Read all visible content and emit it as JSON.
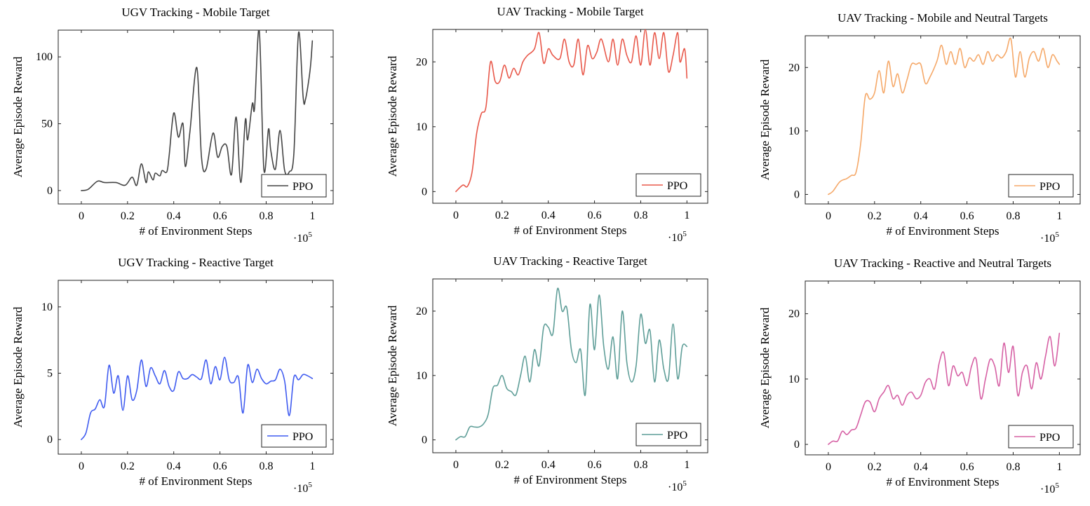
{
  "chart_data": [
    {
      "type": "line",
      "title": "UGV Tracking - Mobile Target",
      "xlabel": "# of Environment Steps",
      "ylabel": "Average Episode Reward",
      "x_multiplier": "·10",
      "x_multiplier_exp": "5",
      "xlim": [
        -0.1,
        1.09
      ],
      "ylim": [
        -10,
        120
      ],
      "xticks": [
        0,
        0.2,
        0.4,
        0.6,
        0.8,
        1
      ],
      "yticks": [
        0,
        50,
        100
      ],
      "legend": "bottom-right",
      "series": [
        {
          "name": "PPO",
          "color": "#444444",
          "x": [
            0,
            0.03,
            0.07,
            0.1,
            0.15,
            0.19,
            0.22,
            0.24,
            0.26,
            0.28,
            0.29,
            0.31,
            0.32,
            0.34,
            0.35,
            0.37,
            0.38,
            0.4,
            0.42,
            0.44,
            0.45,
            0.47,
            0.5,
            0.52,
            0.54,
            0.57,
            0.59,
            0.61,
            0.63,
            0.65,
            0.67,
            0.69,
            0.71,
            0.72,
            0.74,
            0.75,
            0.77,
            0.79,
            0.81,
            0.82,
            0.84,
            0.86,
            0.88,
            0.9,
            0.92,
            0.94,
            0.96,
            0.97,
            0.99,
            1
          ],
          "y": [
            0,
            1,
            7,
            6,
            6,
            4,
            10,
            4,
            20,
            6,
            14,
            8,
            13,
            11,
            15,
            14,
            26,
            58,
            40,
            50,
            18,
            44,
            92,
            25,
            16,
            43,
            25,
            33,
            33,
            12,
            55,
            6,
            53,
            38,
            65,
            62,
            120,
            16,
            46,
            30,
            16,
            45,
            15,
            14,
            28,
            118,
            70,
            68,
            90,
            112
          ]
        }
      ]
    },
    {
      "type": "line",
      "title": "UAV Tracking - Mobile Target",
      "xlabel": "# of Environment Steps",
      "ylabel": "Average Episode Reward",
      "x_multiplier": "·10",
      "x_multiplier_exp": "5",
      "xlim": [
        -0.1,
        1.09
      ],
      "ylim": [
        -1.8,
        25
      ],
      "xticks": [
        0,
        0.2,
        0.4,
        0.6,
        0.8,
        1
      ],
      "yticks": [
        0,
        10,
        20
      ],
      "legend": "bottom-right",
      "series": [
        {
          "name": "PPO",
          "color": "#e8584a",
          "x": [
            0,
            0.03,
            0.05,
            0.07,
            0.09,
            0.11,
            0.13,
            0.15,
            0.17,
            0.19,
            0.21,
            0.23,
            0.25,
            0.27,
            0.29,
            0.31,
            0.34,
            0.36,
            0.38,
            0.4,
            0.42,
            0.45,
            0.47,
            0.49,
            0.51,
            0.53,
            0.55,
            0.57,
            0.59,
            0.61,
            0.63,
            0.66,
            0.68,
            0.7,
            0.72,
            0.74,
            0.76,
            0.78,
            0.8,
            0.82,
            0.84,
            0.86,
            0.88,
            0.9,
            0.92,
            0.94,
            0.96,
            0.97,
            0.99,
            1
          ],
          "y": [
            0,
            1,
            0.8,
            3,
            9,
            12,
            13,
            20,
            17,
            17,
            19.5,
            17.5,
            19,
            18,
            20,
            21,
            22,
            24.5,
            19.8,
            22,
            21,
            20.5,
            23.5,
            20,
            19.5,
            23.5,
            18,
            22.5,
            20.5,
            21.5,
            23.5,
            20,
            23.5,
            19.5,
            23.5,
            21,
            20,
            24,
            19.5,
            25,
            19.5,
            24.5,
            20.5,
            24.5,
            18.5,
            21,
            24.5,
            20,
            22,
            17.5
          ]
        }
      ]
    },
    {
      "type": "line",
      "title": "UAV Tracking - Mobile and Neutral Targets",
      "xlabel": "# of Environment Steps",
      "ylabel": "Average Episode Reward",
      "x_multiplier": "·10",
      "x_multiplier_exp": "5",
      "xlim": [
        -0.1,
        1.09
      ],
      "ylim": [
        -1.5,
        25
      ],
      "xticks": [
        0,
        0.2,
        0.4,
        0.6,
        0.8,
        1
      ],
      "yticks": [
        0,
        10,
        20
      ],
      "legend": "bottom-right",
      "series": [
        {
          "name": "PPO",
          "color": "#f5a868",
          "x": [
            0,
            0.02,
            0.05,
            0.08,
            0.1,
            0.12,
            0.14,
            0.16,
            0.18,
            0.2,
            0.22,
            0.24,
            0.26,
            0.28,
            0.3,
            0.32,
            0.34,
            0.36,
            0.38,
            0.4,
            0.42,
            0.44,
            0.47,
            0.49,
            0.51,
            0.53,
            0.55,
            0.57,
            0.59,
            0.61,
            0.63,
            0.65,
            0.67,
            0.69,
            0.71,
            0.73,
            0.75,
            0.77,
            0.79,
            0.81,
            0.83,
            0.85,
            0.87,
            0.89,
            0.91,
            0.93,
            0.95,
            0.97,
            0.99,
            1
          ],
          "y": [
            0,
            0.5,
            2,
            2.5,
            3,
            3.5,
            8,
            15.5,
            15,
            16,
            19.5,
            16,
            21,
            17,
            19,
            16,
            18,
            20.5,
            20.5,
            20.5,
            17.5,
            18.5,
            21,
            23.5,
            20.5,
            22.5,
            20.5,
            23,
            20,
            21.5,
            21,
            22,
            20.5,
            22.5,
            21,
            22,
            21.5,
            22.5,
            24.5,
            18.5,
            22.5,
            18.5,
            21.5,
            22.5,
            21,
            23,
            20,
            22,
            21,
            20.5
          ]
        }
      ]
    },
    {
      "type": "line",
      "title": "UGV Tracking - Reactive Target",
      "xlabel": "# of Environment Steps",
      "ylabel": "Average Episode Reward",
      "x_multiplier": "·10",
      "x_multiplier_exp": "5",
      "xlim": [
        -0.1,
        1.09
      ],
      "ylim": [
        -1.1,
        12
      ],
      "xticks": [
        0,
        0.2,
        0.4,
        0.6,
        0.8,
        1
      ],
      "yticks": [
        0,
        5,
        10
      ],
      "legend": "bottom-right",
      "series": [
        {
          "name": "PPO",
          "color": "#3f5bf0",
          "x": [
            0,
            0.02,
            0.04,
            0.06,
            0.08,
            0.1,
            0.12,
            0.14,
            0.16,
            0.18,
            0.2,
            0.22,
            0.24,
            0.26,
            0.28,
            0.3,
            0.32,
            0.34,
            0.36,
            0.38,
            0.4,
            0.42,
            0.44,
            0.46,
            0.48,
            0.5,
            0.52,
            0.54,
            0.56,
            0.58,
            0.6,
            0.62,
            0.64,
            0.66,
            0.68,
            0.7,
            0.72,
            0.74,
            0.76,
            0.78,
            0.8,
            0.82,
            0.84,
            0.86,
            0.88,
            0.9,
            0.92,
            0.94,
            0.96,
            0.98,
            1
          ],
          "y": [
            0,
            0.5,
            2,
            2.3,
            3,
            2.5,
            5.6,
            3.5,
            4.8,
            2.2,
            4.8,
            3,
            3.7,
            6,
            4,
            5.4,
            4.8,
            4.2,
            5.2,
            4,
            3.7,
            5.1,
            4.6,
            4.6,
            4.9,
            4.7,
            4.6,
            6,
            4.2,
            5.5,
            4.5,
            6.2,
            4.5,
            4.3,
            4.7,
            2,
            5.6,
            4.3,
            5.3,
            4.6,
            4.2,
            4.4,
            4.5,
            5.3,
            4.4,
            1.8,
            4.7,
            4.5,
            4.9,
            4.8,
            4.6
          ]
        }
      ]
    },
    {
      "type": "line",
      "title": "UAV Tracking - Reactive Target",
      "xlabel": "# of Environment Steps",
      "ylabel": "Average Episode Reward",
      "x_multiplier": "·10",
      "x_multiplier_exp": "5",
      "xlim": [
        -0.1,
        1.09
      ],
      "ylim": [
        -2,
        25
      ],
      "xticks": [
        0,
        0.2,
        0.4,
        0.6,
        0.8,
        1
      ],
      "yticks": [
        0,
        10,
        20
      ],
      "legend": "bottom-right",
      "series": [
        {
          "name": "PPO",
          "color": "#5f9e98",
          "x": [
            0,
            0.02,
            0.04,
            0.06,
            0.08,
            0.1,
            0.12,
            0.14,
            0.16,
            0.18,
            0.2,
            0.22,
            0.24,
            0.26,
            0.28,
            0.3,
            0.32,
            0.34,
            0.36,
            0.38,
            0.4,
            0.42,
            0.44,
            0.46,
            0.48,
            0.5,
            0.52,
            0.54,
            0.56,
            0.58,
            0.6,
            0.62,
            0.64,
            0.66,
            0.68,
            0.7,
            0.72,
            0.74,
            0.76,
            0.78,
            0.8,
            0.82,
            0.84,
            0.86,
            0.88,
            0.9,
            0.92,
            0.94,
            0.96,
            0.98,
            1
          ],
          "y": [
            0,
            0.5,
            0.5,
            2,
            2,
            2,
            2.5,
            4,
            8,
            8.5,
            10,
            8,
            7.5,
            7,
            10,
            13,
            9,
            14,
            11.5,
            17.5,
            17.5,
            16.5,
            23.5,
            20,
            20.5,
            14,
            12,
            14,
            7,
            21,
            14,
            22.5,
            14.5,
            11,
            16,
            9.5,
            20,
            12,
            9,
            11.5,
            19.5,
            15,
            17,
            9,
            15.5,
            11,
            9.5,
            18,
            9.5,
            14.5,
            14.5
          ]
        }
      ]
    },
    {
      "type": "line",
      "title": "UAV Tracking - Reactive and Neutral Targets",
      "xlabel": "# of Environment Steps",
      "ylabel": "Average Episode Reward",
      "x_multiplier": "·10",
      "x_multiplier_exp": "5",
      "xlim": [
        -0.1,
        1.09
      ],
      "ylim": [
        -1.6,
        25
      ],
      "xticks": [
        0,
        0.2,
        0.4,
        0.6,
        0.8,
        1
      ],
      "yticks": [
        0,
        10,
        20
      ],
      "legend": "bottom-right",
      "series": [
        {
          "name": "PPO",
          "color": "#d660a4",
          "x": [
            0,
            0.02,
            0.04,
            0.06,
            0.08,
            0.1,
            0.12,
            0.14,
            0.16,
            0.18,
            0.2,
            0.22,
            0.24,
            0.26,
            0.28,
            0.3,
            0.32,
            0.34,
            0.36,
            0.38,
            0.4,
            0.42,
            0.44,
            0.46,
            0.48,
            0.5,
            0.52,
            0.54,
            0.56,
            0.58,
            0.6,
            0.62,
            0.64,
            0.66,
            0.68,
            0.7,
            0.72,
            0.74,
            0.76,
            0.78,
            0.8,
            0.82,
            0.84,
            0.86,
            0.88,
            0.9,
            0.92,
            0.94,
            0.96,
            0.98,
            1
          ],
          "y": [
            0,
            0.5,
            0.5,
            2,
            1.5,
            2.2,
            2.5,
            4.5,
            6.5,
            6.5,
            5,
            7,
            8,
            9,
            7,
            7.5,
            6,
            7.5,
            8,
            7,
            7.5,
            9.5,
            10,
            8.5,
            12.5,
            14,
            9,
            12,
            10.5,
            11,
            9,
            12,
            13,
            7,
            10,
            13,
            12,
            9,
            15.5,
            11,
            15,
            7.5,
            11,
            12,
            8.5,
            12.5,
            10,
            13.5,
            16.5,
            12,
            17
          ]
        }
      ]
    }
  ]
}
